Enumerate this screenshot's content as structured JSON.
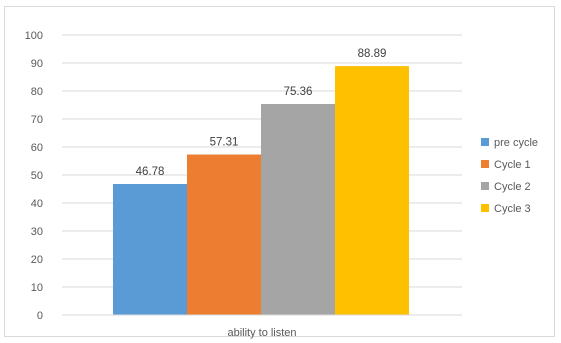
{
  "chart_data": {
    "type": "bar",
    "categories": [
      "ability to listen"
    ],
    "series": [
      {
        "name": "pre cycle",
        "values": [
          46.78
        ],
        "color": "#5b9bd5"
      },
      {
        "name": "Cycle 1",
        "values": [
          57.31
        ],
        "color": "#ed7d31"
      },
      {
        "name": "Cycle 2",
        "values": [
          75.36
        ],
        "color": "#a5a5a5"
      },
      {
        "name": "Cycle 3",
        "values": [
          88.89
        ],
        "color": "#ffc000"
      }
    ],
    "data_labels": [
      "46.78",
      "57.31",
      "75.36",
      "88.89"
    ],
    "ylim": [
      0,
      100
    ],
    "y_ticks": [
      0,
      10,
      20,
      30,
      40,
      50,
      60,
      70,
      80,
      90,
      100
    ],
    "grid": true,
    "legend_position": "right",
    "title": "",
    "xlabel": "",
    "ylabel": ""
  }
}
